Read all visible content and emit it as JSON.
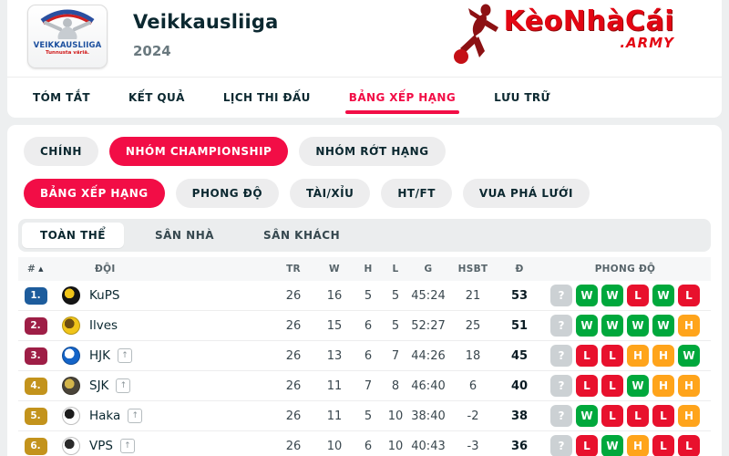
{
  "theme": {
    "accent": "#f20d46"
  },
  "header": {
    "league_name": "Veikkausliiga",
    "season": "2024",
    "logo_text": "VEIKKAUSLIIGA",
    "logo_tagline": "Tunnusta väriä.",
    "brand": {
      "name": "KèoNhàCái",
      "suffix": ".ARMY"
    }
  },
  "nav": {
    "tabs": [
      {
        "name": "tom-tat",
        "label": "TÓM TẮT",
        "active": false
      },
      {
        "name": "ket-qua",
        "label": "KẾT QUẢ",
        "active": false
      },
      {
        "name": "lich-thi-dau",
        "label": "LỊCH THI ĐẤU",
        "active": false
      },
      {
        "name": "bang-xep-hang",
        "label": "BẢNG XẾP HẠNG",
        "active": true
      },
      {
        "name": "luu-tru",
        "label": "LƯU TRỮ",
        "active": false
      }
    ]
  },
  "filters": {
    "stage_tabs": [
      {
        "name": "chinh",
        "label": "CHÍNH",
        "active": false
      },
      {
        "name": "nhom-championship",
        "label": "NHÓM CHAMPIONSHIP",
        "active": true
      },
      {
        "name": "nhom-rot-hang",
        "label": "NHÓM RỚT HẠNG",
        "active": false
      }
    ],
    "view_tabs": [
      {
        "name": "bang-xep-hang",
        "label": "BẢNG XẾP HẠNG",
        "active": true
      },
      {
        "name": "phong-do",
        "label": "PHONG ĐỘ",
        "active": false
      },
      {
        "name": "tai-xiu",
        "label": "TÀI/XỈU",
        "active": false
      },
      {
        "name": "ht-ft",
        "label": "HT/FT",
        "active": false
      },
      {
        "name": "vua-pha-luoi",
        "label": "VUA PHÁ LƯỚI",
        "active": false
      }
    ],
    "scope_tabs": [
      {
        "name": "toan-the",
        "label": "TOÀN THỂ",
        "active": true
      },
      {
        "name": "san-nha",
        "label": "SÂN NHÀ",
        "active": false
      },
      {
        "name": "san-khach",
        "label": "SÂN KHÁCH",
        "active": false
      }
    ]
  },
  "icons": {
    "sort_asc": "▲",
    "promotion_arrow": "↑"
  },
  "table": {
    "columns": [
      "#",
      "ĐỘI",
      "TR",
      "W",
      "H",
      "L",
      "G",
      "HSBT",
      "Đ",
      "PHONG ĐỘ"
    ],
    "rows": [
      {
        "rank": "1.",
        "rank_color": "#1d5c9c",
        "team": "KuPS",
        "promotion": false,
        "logo": {
          "bg": "#151515",
          "fg": "#f0c419"
        },
        "tr": "26",
        "w": "16",
        "h": "5",
        "l": "5",
        "g": "45:24",
        "hsbt": "21",
        "d": "53",
        "form": [
          "?",
          "W",
          "W",
          "L",
          "W",
          "L"
        ]
      },
      {
        "rank": "2.",
        "rank_color": "#9e1e46",
        "team": "Ilves",
        "promotion": false,
        "logo": {
          "bg": "#f0c419",
          "fg": "#6b4c12"
        },
        "tr": "26",
        "w": "15",
        "h": "6",
        "l": "5",
        "g": "52:27",
        "hsbt": "25",
        "d": "51",
        "form": [
          "?",
          "W",
          "W",
          "W",
          "W",
          "H"
        ]
      },
      {
        "rank": "3.",
        "rank_color": "#9e1e46",
        "team": "HJK",
        "promotion": true,
        "logo": {
          "bg": "#1464c8",
          "fg": "#ffffff"
        },
        "tr": "26",
        "w": "13",
        "h": "6",
        "l": "7",
        "g": "44:26",
        "hsbt": "18",
        "d": "45",
        "form": [
          "?",
          "L",
          "L",
          "H",
          "H",
          "W"
        ]
      },
      {
        "rank": "4.",
        "rank_color": "#c3931c",
        "team": "SJK",
        "promotion": true,
        "logo": {
          "bg": "#4a4439",
          "fg": "#d3b44a"
        },
        "tr": "26",
        "w": "11",
        "h": "7",
        "l": "8",
        "g": "46:40",
        "hsbt": "6",
        "d": "40",
        "form": [
          "?",
          "L",
          "L",
          "W",
          "H",
          "H"
        ]
      },
      {
        "rank": "5.",
        "rank_color": "#c3931c",
        "team": "Haka",
        "promotion": true,
        "logo": {
          "bg": "#ffffff",
          "fg": "#1d1d1d"
        },
        "tr": "26",
        "w": "11",
        "h": "5",
        "l": "10",
        "g": "38:40",
        "hsbt": "-2",
        "d": "38",
        "form": [
          "?",
          "W",
          "L",
          "L",
          "L",
          "H"
        ]
      },
      {
        "rank": "6.",
        "rank_color": "#c3931c",
        "team": "VPS",
        "promotion": true,
        "logo": {
          "bg": "#ffffff",
          "fg": "#2a2a2a"
        },
        "tr": "26",
        "w": "10",
        "h": "6",
        "l": "10",
        "g": "40:43",
        "hsbt": "-3",
        "d": "36",
        "form": [
          "?",
          "L",
          "W",
          "H",
          "L",
          "L"
        ]
      }
    ]
  },
  "form_colors": {
    "W": "#00a83c",
    "L": "#e8112d",
    "H": "#ffa41b",
    "?": "#ccd1d4"
  }
}
